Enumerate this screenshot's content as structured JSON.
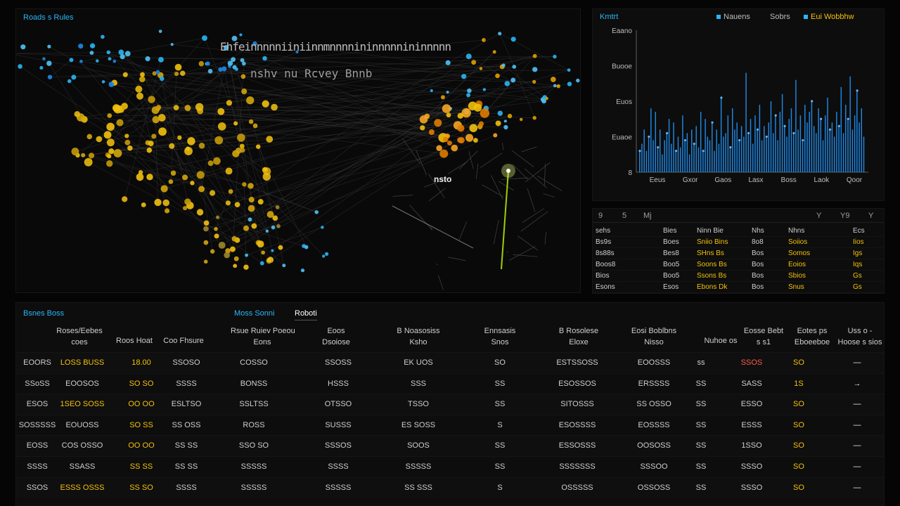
{
  "colors": {
    "accent": "#29b6f6",
    "yellow": "#f2c10d",
    "orange": "#f5a623",
    "red": "#ff5a4a",
    "bar": "#1e88e5"
  },
  "map": {
    "title": "Roads s Rules",
    "heading1": "Ehfeinnnnniiniinnmnnnnininnnnnininnnnn",
    "heading2": "nshv nu Rcvey  Bnnb",
    "callout": "nsto"
  },
  "chart": {
    "title": "Kmtrt",
    "legend": [
      {
        "label": "Nauens",
        "color": "#29b6f6"
      },
      {
        "label": "Sobrs",
        "color": "#9e9e9e"
      },
      {
        "label": "Eui Wobbhw",
        "color": "#f2c10d"
      }
    ],
    "chart_data": {
      "type": "bar",
      "title": "",
      "y_tick_labels": [
        "Eaano",
        "Buooe",
        "Euos",
        "Euaoe",
        "8"
      ],
      "x_tick_labels": [
        "Eeus",
        "Gxor",
        "Gaos",
        "Lasx",
        "Boss",
        "Laok",
        "Qoor"
      ],
      "ylim": [
        0,
        4
      ],
      "values": [
        0.6,
        0.8,
        1.2,
        0.6,
        1.0,
        1.8,
        0.9,
        1.7,
        0.7,
        1.2,
        0.5,
        0.9,
        1.1,
        1.5,
        0.8,
        1.4,
        0.6,
        1.0,
        0.7,
        1.6,
        0.9,
        1.1,
        0.5,
        1.2,
        0.8,
        1.3,
        0.7,
        1.7,
        0.6,
        1.5,
        1.0,
        0.9,
        1.4,
        0.6,
        1.2,
        0.8,
        2.1,
        1.0,
        1.1,
        1.6,
        0.7,
        1.8,
        1.2,
        1.4,
        0.9,
        1.3,
        1.0,
        2.8,
        1.1,
        1.5,
        0.8,
        1.6,
        1.2,
        1.9,
        0.9,
        1.3,
        1.0,
        1.4,
        2.0,
        1.1,
        1.6,
        0.9,
        1.7,
        2.2,
        1.3,
        1.0,
        1.5,
        1.8,
        1.1,
        2.6,
        1.2,
        1.6,
        0.9,
        1.9,
        1.4,
        1.7,
        2.0,
        1.3,
        1.1,
        1.8,
        1.5,
        0.9,
        1.6,
        2.1,
        1.2,
        1.4,
        1.0,
        1.7,
        1.3,
        2.4,
        1.1,
        1.9,
        1.5,
        2.7,
        1.2,
        1.6,
        2.3,
        1.4,
        1.8,
        1.0
      ]
    }
  },
  "side_table": {
    "icons": [
      "9",
      "5",
      "Mj",
      "Y",
      "Y9",
      "Y"
    ],
    "rows": [
      [
        "sehs",
        "Bies",
        "Ninn Bie",
        "Nhs",
        "Nhns",
        "Ecs"
      ],
      [
        "Bs9s",
        "Boes",
        "Sniio Bins",
        "8o8",
        "Soiios",
        "Iios"
      ],
      [
        "8s88s",
        "Bes8",
        "SHns Bs",
        "Bos",
        "Somos",
        "Igs"
      ],
      [
        "Boos8",
        "Boo5",
        "Soons Bs",
        "Bos",
        "Eoios",
        "Iqs"
      ],
      [
        "Bios",
        "Boo5",
        "Ssons Bs",
        "Bos",
        "Sbios",
        "Gs"
      ],
      [
        "Esons",
        "Esos",
        "Ebons Dk",
        "Bos",
        "Snus",
        "Gs"
      ]
    ]
  },
  "main_table": {
    "tabs": [
      "Bsnes Boss",
      "Moss Sonni",
      "Roboti"
    ],
    "headers": [
      [
        "Roses/Eebes",
        "coes"
      ],
      [
        "Roos Hoat"
      ],
      [
        "Coo Fhsure"
      ],
      [
        "Rsue Ruiev Poeou",
        "Eons"
      ],
      [
        "Eoos",
        "Dsoiose"
      ],
      [
        "B Noasosiss",
        "Ksho"
      ],
      [
        "Ennsasis",
        "Snos"
      ],
      [
        "B Rosolese",
        "Eloxe"
      ],
      [
        "Eosi Boblbns",
        "Nisso"
      ],
      [
        "Nuhoe os"
      ],
      [
        "Eosse Bebt",
        "s s1"
      ],
      [
        "Eotes ps",
        "Eboeeboe"
      ],
      [
        "Uss o -",
        "Hoose s sios"
      ]
    ],
    "rows": [
      [
        "EOORS",
        "LOSS BUSS",
        "18.00",
        "SSOSO",
        "COSSO",
        "SSOSS",
        "EK UOS",
        "SO",
        "ESTSSOSS",
        "EOOSSS",
        "ss",
        "SSOS",
        "SO",
        "—"
      ],
      [
        "SSoSS",
        "EOOSOS",
        "SO SO",
        "SSSS",
        "BONSS",
        "HSSS",
        "SSS",
        "SS",
        "ESOSSOS",
        "ERSSSS",
        "SS",
        "SASS",
        "1S",
        "→"
      ],
      [
        "ESOS",
        "1SEO SOSS",
        "OO OO",
        "ESLTSO",
        "SSLTSS",
        "OTSSO",
        "TSSO",
        "SS",
        "SITOSSS",
        "SS OSSO",
        "SS",
        "ESSO",
        "SO",
        "—"
      ],
      [
        "SOSSSSS",
        "EOUOSS",
        "SO SS",
        "SS OSS",
        "ROSS",
        "SUSSS",
        "ES SOSS",
        "S",
        "ESOSSSS",
        "EOSSSS",
        "SS",
        "ESSS",
        "SO",
        "—"
      ],
      [
        "EOSS",
        "COS OSSO",
        "OO OO",
        "SS SS",
        "SSO SO",
        "SSSOS",
        "SOOS",
        "SS",
        "ESSOSSS",
        "OOSOSS",
        "SS",
        "1SSO",
        "SO",
        "—"
      ],
      [
        "SSSS",
        "SSASS",
        "SS SS",
        "SS SS",
        "SSSSS",
        "SSSS",
        "SSSSS",
        "SS",
        "SSSSSSS",
        "SSSOO",
        "SS",
        "SSSO",
        "SO",
        "—"
      ],
      [
        "SSOS",
        "ESSS OSSS",
        "SS SO",
        "SSSS",
        "SSSSS",
        "SSSSS",
        "SS SSS",
        "S",
        "OSSSSS",
        "OSSOSS",
        "SS",
        "SSSO",
        "SO",
        "—"
      ]
    ]
  }
}
